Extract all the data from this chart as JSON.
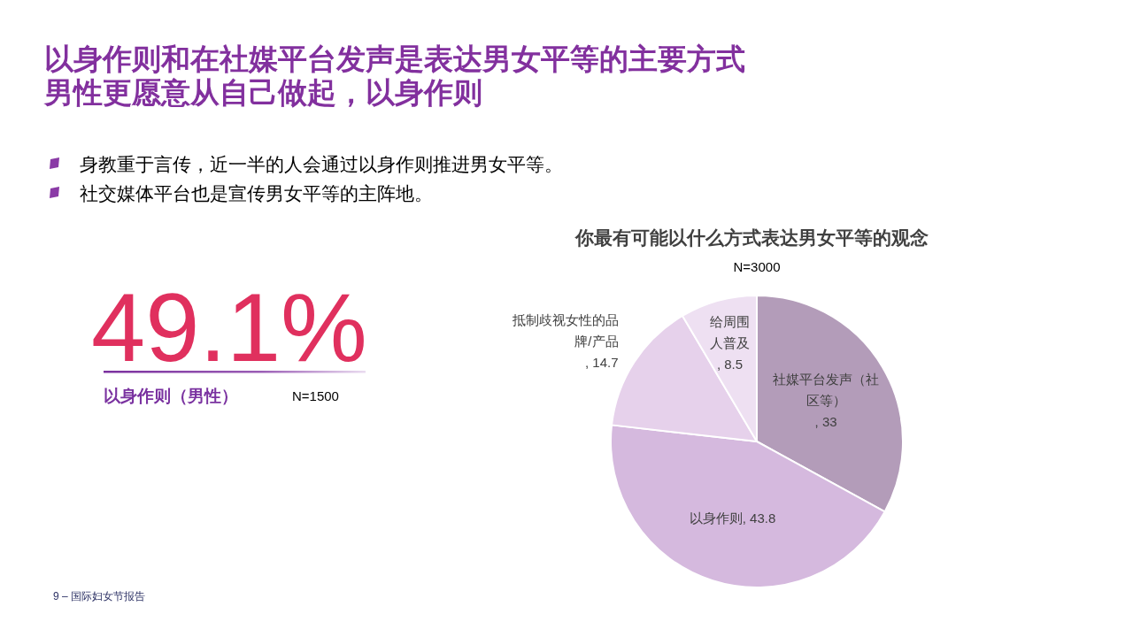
{
  "chart_data": [
    {
      "type": "other",
      "title": "以身作则和在社媒平台发声是表达男女平等的主要方式",
      "subtitle": "男性更愿意从自己做起，以身作则",
      "annotations": [
        "身教重于言传，近一半的人会通过以身作则推进男女平等。",
        "社交媒体平台也是宣传男女平等的主阵地。",
        "49.1%",
        "以身作则（男性）",
        "N=1500",
        "9 – 国际妇女节报告"
      ]
    },
    {
      "type": "pie",
      "title": "你最有可能以什么方式表达男女平等的观念",
      "subtitle": "N=3000",
      "categories": [
        "社媒平台发声（社区等）",
        "以身作则",
        "抵制歧视女性的品牌/产品",
        "给周围人普及"
      ],
      "values": [
        33,
        43.8,
        14.7,
        8.5
      ],
      "colors": [
        "#b39cb9",
        "#d5b9de",
        "#e6d1eb",
        "#eee0f2"
      ],
      "value_labels": [
        ", 33",
        ", 43.8",
        ", 14.7",
        ", 8.5"
      ]
    }
  ]
}
